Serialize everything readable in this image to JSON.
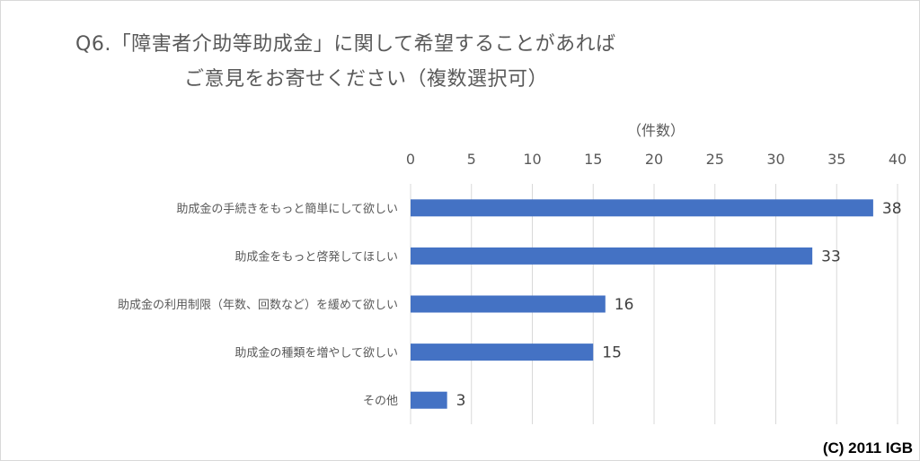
{
  "title_line1": "Q6.「障害者介助等助成金」に関して希望することがあれば",
  "title_line2": "ご意見をお寄せください（複数選択可）",
  "copyright": "(C) 2011 IGB",
  "colors": {
    "bar": "#4472c4",
    "grid": "#d9d9d9",
    "text": "#595959"
  },
  "chart_data": {
    "type": "bar",
    "orientation": "horizontal",
    "categories": [
      "助成金の手続きをもっと簡単にして欲しい",
      "助成金をもっと啓発してほしい",
      "助成金の利用制限（年数、回数など）を緩めて欲しい",
      "助成金の種類を増やして欲しい",
      "その他"
    ],
    "values": [
      38,
      33,
      16,
      15,
      3
    ],
    "xlabel": "（件数）",
    "xlim": [
      0,
      40
    ],
    "xticks": [
      0,
      5,
      10,
      15,
      20,
      25,
      30,
      35,
      40
    ],
    "x_axis_position": "top",
    "grid": true,
    "data_labels": true
  }
}
